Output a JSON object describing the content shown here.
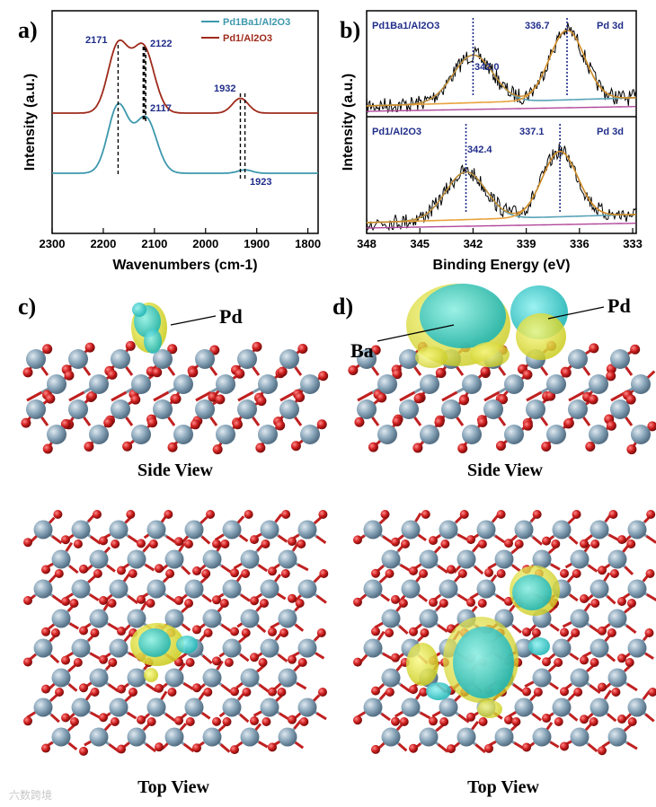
{
  "panels": {
    "a": {
      "label": "a)"
    },
    "b": {
      "label": "b)"
    },
    "c": {
      "label": "c)",
      "pd_label": "Pd",
      "side_caption": "Side View",
      "top_caption": "Top View"
    },
    "d": {
      "label": "d)",
      "pd_label": "Pd",
      "ba_label": "Ba",
      "side_caption": "Side View",
      "top_caption": "Top View"
    }
  },
  "watermark": "六数跨境",
  "colors": {
    "teal": "#3d98ad",
    "red": "#9e2b1b",
    "orange": "#e8a23c",
    "blue_fit": "#5aa3b8",
    "magenta": "#b0479a",
    "al_atom": "#8aa6ba",
    "o_atom": "#cf1f1f",
    "iso_yellow": "#e5e532",
    "iso_cyan": "#2fcfcf",
    "annotation": "#1f2d8a"
  },
  "chart_data": [
    {
      "type": "line",
      "panel": "a",
      "xlabel": "Wavenumbers (cm-1)",
      "ylabel": "Intensity (a.u.)",
      "xlim": [
        2300,
        1780
      ],
      "x_ticks": [
        "2300",
        "2200",
        "2100",
        "2000",
        "1900",
        "1800"
      ],
      "legend": {
        "placement": "top-right",
        "entries": [
          "Pd1Ba1/Al2O3",
          "Pd1/Al2O3"
        ]
      },
      "series": [
        {
          "name": "Pd1/Al2O3",
          "color": "#9e2b1b",
          "peaks": [
            2171,
            2122,
            1932
          ]
        },
        {
          "name": "Pd1Ba1/Al2O3",
          "color": "#3d98ad",
          "peaks": [
            2171,
            2117,
            1923
          ]
        }
      ],
      "annotations": [
        "2171",
        "2122",
        "2117",
        "1932",
        "1923"
      ]
    },
    {
      "type": "line",
      "panel": "b",
      "xlabel": "Binding Energy (eV)",
      "ylabel": "Intensity (a.u.)",
      "xlim": [
        348,
        332.8
      ],
      "x_ticks": [
        "348",
        "345",
        "342",
        "339",
        "336",
        "333"
      ],
      "subplots": [
        {
          "sample": "Pd1Ba1/Al2O3",
          "region": "Pd 3d",
          "peaks": [
            342.0,
            336.7
          ],
          "peak_labels": [
            "342.0",
            "336.7"
          ]
        },
        {
          "sample": "Pd1/Al2O3",
          "region": "Pd 3d",
          "peaks": [
            342.4,
            337.1
          ],
          "peak_labels": [
            "342.4",
            "337.1"
          ]
        }
      ]
    }
  ]
}
